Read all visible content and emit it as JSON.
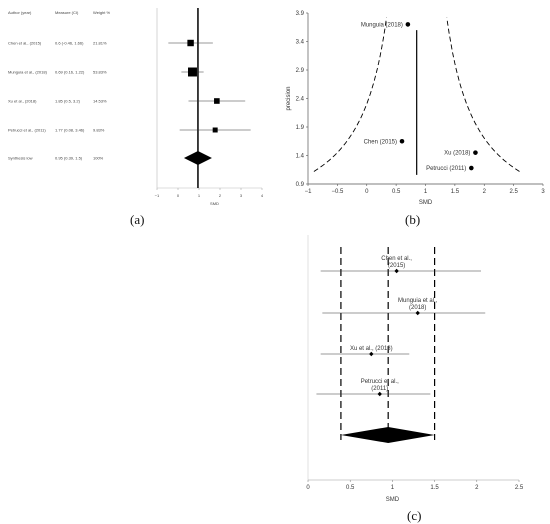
{
  "chart_data": [
    {
      "id": "a",
      "type": "forest",
      "caption": "(a)",
      "headers": {
        "author": "Author (year)",
        "measure": "Measure (CI)",
        "weight": "Weight %"
      },
      "studies": [
        {
          "label": "Chen et al., (2015)",
          "measure_text": "0.6 (-0.46, 1.66)",
          "weight_text": "21.81%",
          "est": 0.6,
          "lo": -0.46,
          "hi": 1.66,
          "weight": 21.81
        },
        {
          "label": "Munguia et al., (2018)",
          "measure_text": "0.69 (0.16, 1.22)",
          "weight_text": "53.83%",
          "est": 0.69,
          "lo": 0.16,
          "hi": 1.22,
          "weight": 53.83
        },
        {
          "label": "Xu et al., (2018)",
          "measure_text": "1.85 (0.5, 3.2)",
          "weight_text": "14.53%",
          "est": 1.85,
          "lo": 0.5,
          "hi": 3.2,
          "weight": 14.53
        },
        {
          "label": "Petrucci et al., (2011)",
          "measure_text": "1.77 (0.08, 3.46)",
          "weight_text": "9.83%",
          "est": 1.77,
          "lo": 0.08,
          "hi": 3.46,
          "weight": 9.83
        }
      ],
      "summary": {
        "label": "Synthesis low",
        "measure_text": "0.95 (0.39, 1.5)",
        "weight_text": "100%",
        "est": 0.95,
        "lo": 0.39,
        "hi": 1.5
      },
      "xlabel": "SMD",
      "xlim": [
        -1,
        4
      ],
      "xticks": [
        -1,
        0,
        1,
        2,
        3,
        4
      ]
    },
    {
      "id": "b",
      "type": "scatter",
      "subtype": "funnel",
      "caption": "(b)",
      "xlabel": "SMD",
      "ylabel": "precision",
      "xlim": [
        -1,
        3
      ],
      "ylim": [
        0.9,
        3.9
      ],
      "xticks": [
        -1,
        -0.5,
        0,
        0.5,
        1,
        1.5,
        2,
        2.5,
        3
      ],
      "xtick_labels": [
        "−1",
        "−0.5",
        "0",
        "0.5",
        "1",
        "1.5",
        "2",
        "2.5",
        "3"
      ],
      "yticks": [
        0.9,
        1.4,
        1.9,
        2.4,
        2.9,
        3.4,
        3.9
      ],
      "ytick_labels": [
        "0.9",
        "1.4",
        "1.9",
        "2.4",
        "2.9",
        "3.4",
        "3.9"
      ],
      "pooled": 0.85,
      "points": [
        {
          "label": "Munguia (2018)",
          "x": 0.7,
          "y": 3.7
        },
        {
          "label": "Chen (2015)",
          "x": 0.6,
          "y": 1.65
        },
        {
          "label": "Xu (2018)",
          "x": 1.85,
          "y": 1.45
        },
        {
          "label": "Petrucci (2011)",
          "x": 1.78,
          "y": 1.18
        }
      ]
    },
    {
      "id": "c",
      "type": "forest",
      "caption": "(c)",
      "xlabel": "SMD",
      "xlim": [
        0,
        2.5
      ],
      "xticks": [
        0,
        0.5,
        1,
        1.5,
        2,
        2.5
      ],
      "xtick_labels": [
        "0",
        "0.5",
        "1",
        "1.5",
        "2",
        "2.5"
      ],
      "studies": [
        {
          "label_lines": [
            "Chen et al.,",
            "(2015)"
          ],
          "est": 1.05,
          "lo": 0.15,
          "hi": 2.05
        },
        {
          "label_lines": [
            "Munguia et al.,",
            "(2018)"
          ],
          "est": 1.3,
          "lo": 0.17,
          "hi": 2.1
        },
        {
          "label_lines": [
            "Xu et al., (2018)"
          ],
          "est": 0.75,
          "lo": 0.15,
          "hi": 1.2
        },
        {
          "label_lines": [
            "Petrucci et al.,",
            "(2011)"
          ],
          "est": 0.85,
          "lo": 0.1,
          "hi": 1.45
        }
      ],
      "summary": {
        "est": 0.95,
        "lo": 0.39,
        "hi": 1.5
      },
      "dashed_lines": [
        0.39,
        0.95,
        1.5
      ]
    }
  ]
}
